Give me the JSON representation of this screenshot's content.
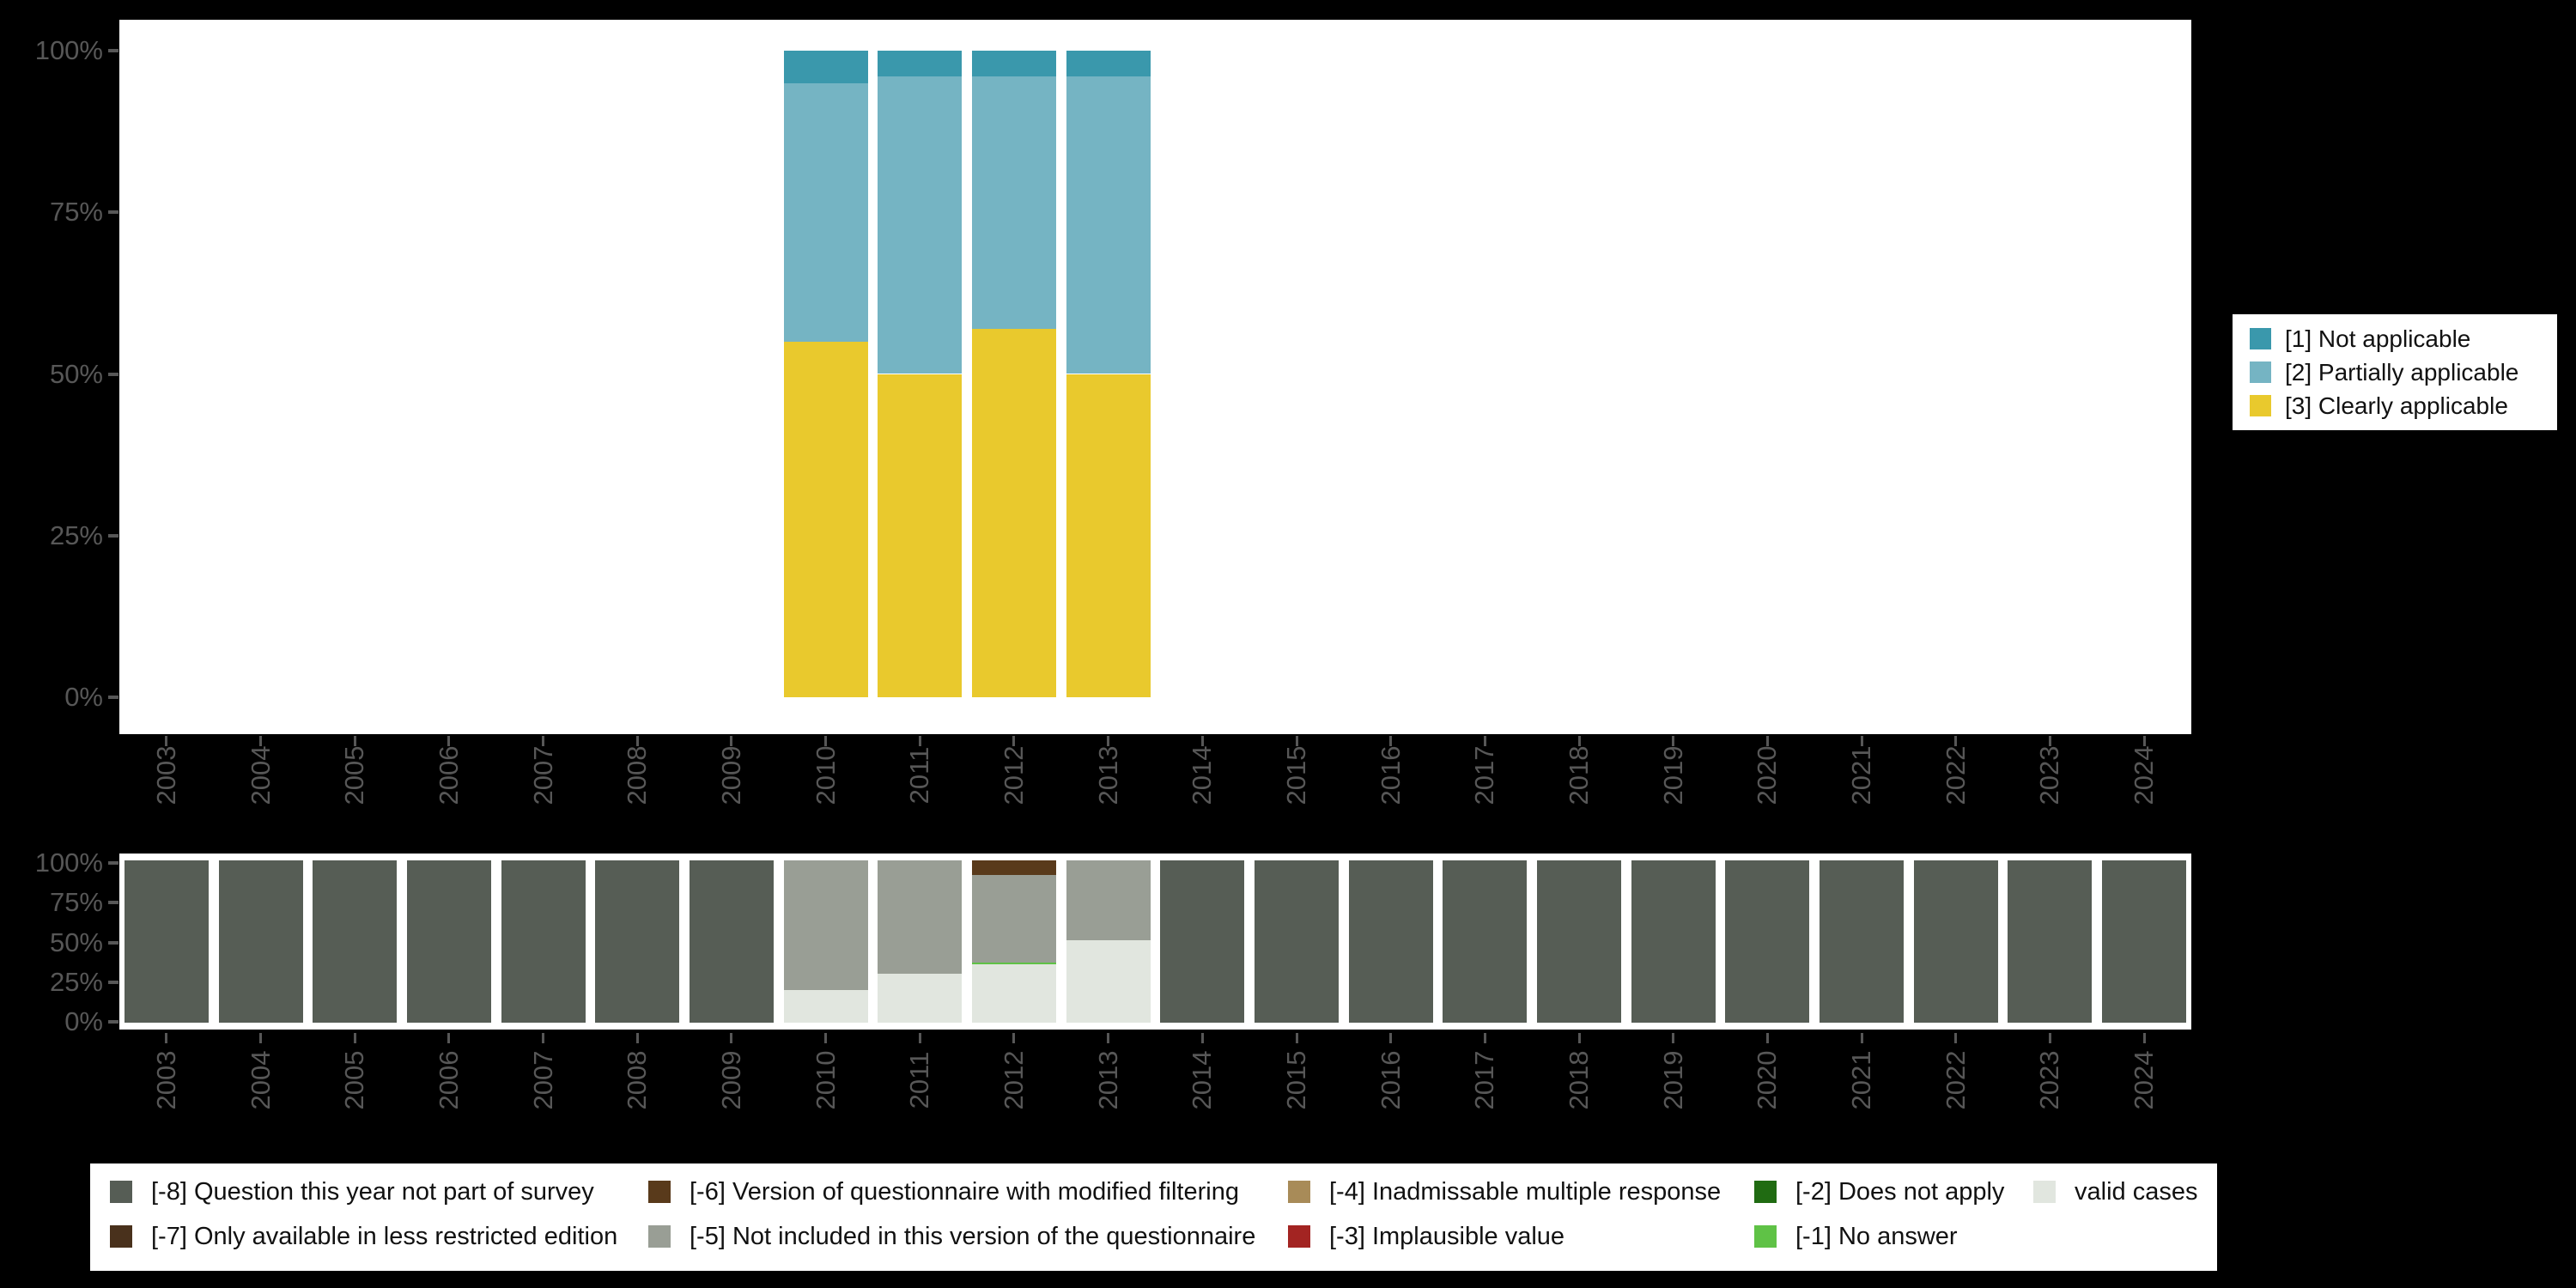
{
  "page": {
    "background_color": "#000000",
    "plot_background_color": "#ffffff",
    "axis_text_color": "#575757"
  },
  "chart_data": [
    {
      "id": "applicability-by-year",
      "type": "bar",
      "stacked": true,
      "unit": "percent",
      "title": "",
      "xlabel": "",
      "ylabel": "",
      "ylim": [
        0,
        100
      ],
      "y_ticks": [
        "100%",
        "75%",
        "50%",
        "25%",
        "0%"
      ],
      "grid": false,
      "legend_position": "right",
      "categories": [
        "2003",
        "2004",
        "2005",
        "2006",
        "2007",
        "2008",
        "2009",
        "2010",
        "2011",
        "2012",
        "2013",
        "2014",
        "2015",
        "2016",
        "2017",
        "2018",
        "2019",
        "2020",
        "2021",
        "2022",
        "2023",
        "2024"
      ],
      "series": [
        {
          "name": "[3] Clearly applicable",
          "color": "#E9C92D",
          "values": [
            0,
            0,
            0,
            0,
            0,
            0,
            0,
            55,
            50,
            57,
            50,
            0,
            0,
            0,
            0,
            0,
            0,
            0,
            0,
            0,
            0,
            0
          ]
        },
        {
          "name": "[2] Partially applicable",
          "color": "#75B4C3",
          "values": [
            0,
            0,
            0,
            0,
            0,
            0,
            0,
            40,
            46,
            39,
            46,
            0,
            0,
            0,
            0,
            0,
            0,
            0,
            0,
            0,
            0,
            0
          ]
        },
        {
          "name": "[1] Not applicable",
          "color": "#3A98AC",
          "values": [
            0,
            0,
            0,
            0,
            0,
            0,
            0,
            5,
            4,
            4,
            4,
            0,
            0,
            0,
            0,
            0,
            0,
            0,
            0,
            0,
            0,
            0
          ]
        }
      ],
      "legend": [
        {
          "label": "[1] Not applicable",
          "color": "#3A98AC"
        },
        {
          "label": "[2] Partially applicable",
          "color": "#75B4C3"
        },
        {
          "label": "[3] Clearly applicable",
          "color": "#E9C92D"
        }
      ]
    },
    {
      "id": "missing-values-by-year",
      "type": "bar",
      "stacked": true,
      "unit": "percent",
      "title": "",
      "xlabel": "",
      "ylabel": "",
      "ylim": [
        0,
        100
      ],
      "y_ticks": [
        "100%",
        "75%",
        "50%",
        "25%",
        "0%"
      ],
      "grid": false,
      "legend_position": "bottom",
      "categories": [
        "2003",
        "2004",
        "2005",
        "2006",
        "2007",
        "2008",
        "2009",
        "2010",
        "2011",
        "2012",
        "2013",
        "2014",
        "2015",
        "2016",
        "2017",
        "2018",
        "2019",
        "2020",
        "2021",
        "2022",
        "2023",
        "2024"
      ],
      "series": [
        {
          "name": "valid cases",
          "color": "#E1E6DF",
          "values": [
            0,
            0,
            0,
            0,
            0,
            0,
            0,
            20,
            30,
            36,
            51,
            0,
            0,
            0,
            0,
            0,
            0,
            0,
            0,
            0,
            0,
            0
          ]
        },
        {
          "name": "[-1] No answer",
          "color": "#5FC246",
          "values": [
            0,
            0,
            0,
            0,
            0,
            0,
            0,
            0,
            0,
            1,
            0,
            0,
            0,
            0,
            0,
            0,
            0,
            0,
            0,
            0,
            0,
            0
          ]
        },
        {
          "name": "[-2] Does not apply",
          "color": "#206B12",
          "values": [
            0,
            0,
            0,
            0,
            0,
            0,
            0,
            0,
            0,
            0,
            0,
            0,
            0,
            0,
            0,
            0,
            0,
            0,
            0,
            0,
            0,
            0
          ]
        },
        {
          "name": "[-3] Implausible value",
          "color": "#A32422",
          "values": [
            0,
            0,
            0,
            0,
            0,
            0,
            0,
            0,
            0,
            0,
            0,
            0,
            0,
            0,
            0,
            0,
            0,
            0,
            0,
            0,
            0,
            0
          ]
        },
        {
          "name": "[-4] Inadmissable multiple response",
          "color": "#A88B58",
          "values": [
            0,
            0,
            0,
            0,
            0,
            0,
            0,
            0,
            0,
            0,
            0,
            0,
            0,
            0,
            0,
            0,
            0,
            0,
            0,
            0,
            0,
            0
          ]
        },
        {
          "name": "[-5] Not included in this version of the questionnaire",
          "color": "#999E95",
          "values": [
            0,
            0,
            0,
            0,
            0,
            0,
            0,
            80,
            70,
            54,
            49,
            0,
            0,
            0,
            0,
            0,
            0,
            0,
            0,
            0,
            0,
            0
          ]
        },
        {
          "name": "[-6] Version of questionnaire with modified filtering",
          "color": "#593A1B",
          "values": [
            0,
            0,
            0,
            0,
            0,
            0,
            0,
            0,
            0,
            9,
            0,
            0,
            0,
            0,
            0,
            0,
            0,
            0,
            0,
            0,
            0,
            0
          ]
        },
        {
          "name": "[-7] Only available in less restricted edition",
          "color": "#49311C",
          "values": [
            0,
            0,
            0,
            0,
            0,
            0,
            0,
            0,
            0,
            0,
            0,
            0,
            0,
            0,
            0,
            0,
            0,
            0,
            0,
            0,
            0,
            0
          ]
        },
        {
          "name": "[-8] Question this year not part of survey",
          "color": "#565D55",
          "values": [
            100,
            100,
            100,
            100,
            100,
            100,
            100,
            0,
            0,
            0,
            0,
            100,
            100,
            100,
            100,
            100,
            100,
            100,
            100,
            100,
            100,
            100
          ]
        }
      ],
      "legend_columns": [
        [
          {
            "label": "[-8] Question this year not part of survey",
            "color": "#565D55"
          },
          {
            "label": "[-7] Only available in less restricted edition",
            "color": "#49311C"
          }
        ],
        [
          {
            "label": "[-6] Version of questionnaire with modified filtering",
            "color": "#593A1B"
          },
          {
            "label": "[-5] Not included in this version of the questionnaire",
            "color": "#999E95"
          }
        ],
        [
          {
            "label": "[-4] Inadmissable multiple response",
            "color": "#A88B58"
          },
          {
            "label": "[-3] Implausible value",
            "color": "#A32422"
          }
        ],
        [
          {
            "label": "[-2] Does not apply",
            "color": "#206B12"
          },
          {
            "label": "[-1] No answer",
            "color": "#5FC246"
          }
        ],
        [
          {
            "label": "valid cases",
            "color": "#E1E6DF"
          }
        ]
      ]
    }
  ]
}
